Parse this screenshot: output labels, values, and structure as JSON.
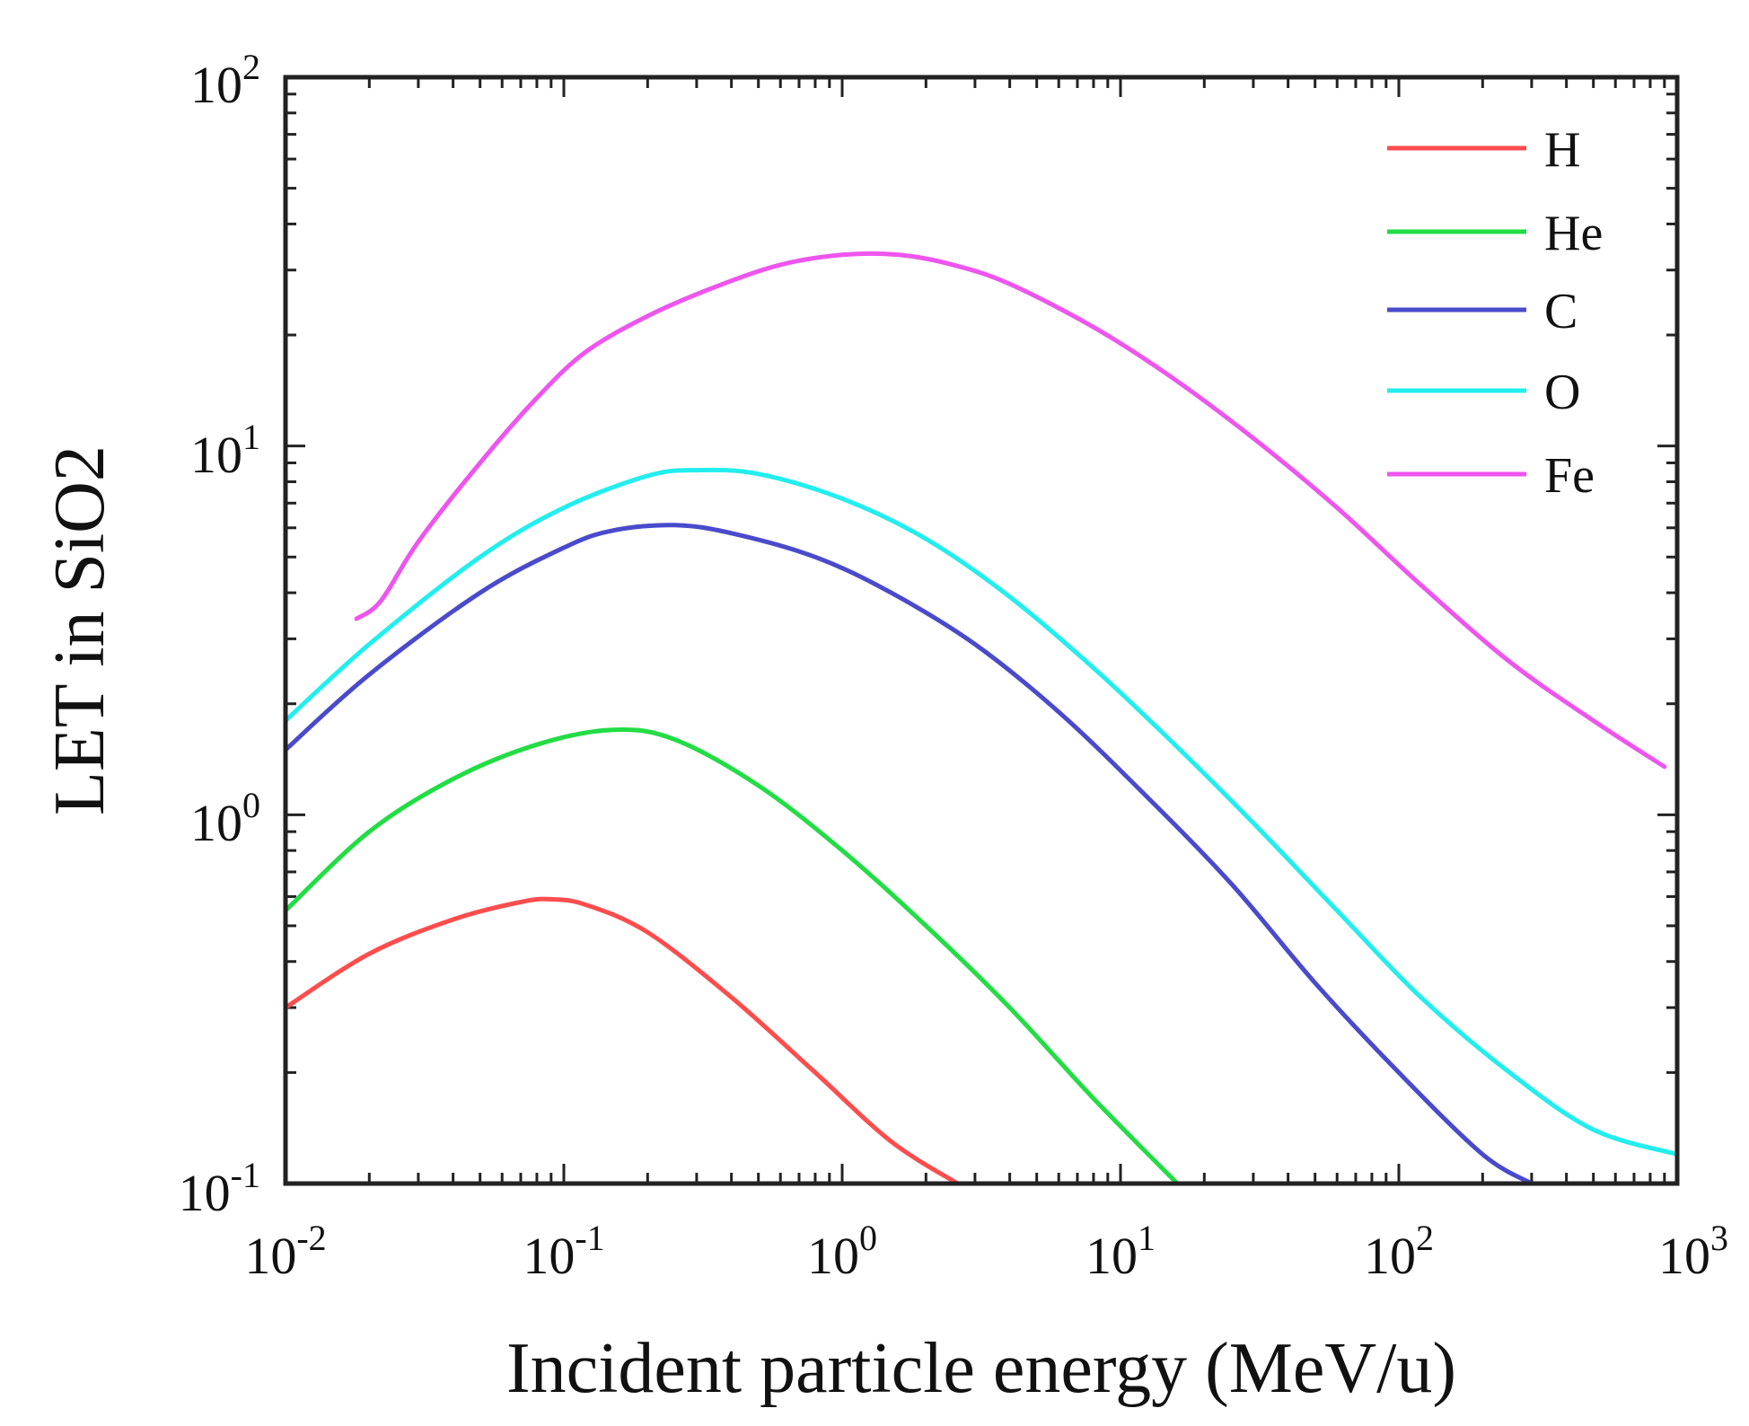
{
  "chart_data": {
    "type": "line",
    "xscale": "log",
    "yscale": "log",
    "xlim": [
      0.01,
      1000
    ],
    "ylim": [
      0.1,
      100
    ],
    "xlabel": "Incident particle energy (MeV/u)",
    "ylabel": "LET in SiO2",
    "legend_position": "top-right",
    "x_ticks": [
      {
        "base": "10",
        "exp": "-2"
      },
      {
        "base": "10",
        "exp": "-1"
      },
      {
        "base": "10",
        "exp": "0"
      },
      {
        "base": "10",
        "exp": "1"
      },
      {
        "base": "10",
        "exp": "2"
      },
      {
        "base": "10",
        "exp": "3"
      }
    ],
    "y_ticks": [
      {
        "base": "10",
        "exp": "-1"
      },
      {
        "base": "10",
        "exp": "0"
      },
      {
        "base": "10",
        "exp": "1"
      },
      {
        "base": "10",
        "exp": "2"
      }
    ],
    "series": [
      {
        "name": "H",
        "color": "#ff4d4d",
        "x": [
          0.01,
          0.02,
          0.04,
          0.07,
          0.09,
          0.12,
          0.2,
          0.4,
          0.8,
          1.5,
          2.6
        ],
        "y": [
          0.3,
          0.42,
          0.52,
          0.58,
          0.59,
          0.57,
          0.48,
          0.32,
          0.2,
          0.13,
          0.1
        ]
      },
      {
        "name": "He",
        "color": "#22dd44",
        "x": [
          0.01,
          0.02,
          0.04,
          0.08,
          0.15,
          0.25,
          0.5,
          1,
          2,
          4,
          8,
          16
        ],
        "y": [
          0.55,
          0.9,
          1.25,
          1.55,
          1.7,
          1.6,
          1.2,
          0.8,
          0.5,
          0.3,
          0.17,
          0.1
        ]
      },
      {
        "name": "C",
        "color": "#4a4acc",
        "x": [
          0.01,
          0.02,
          0.05,
          0.1,
          0.15,
          0.25,
          0.4,
          0.8,
          1.5,
          3,
          6,
          12,
          25,
          50,
          100,
          200,
          300
        ],
        "y": [
          1.5,
          2.4,
          4.0,
          5.3,
          5.9,
          6.1,
          5.8,
          5.0,
          4.0,
          2.9,
          1.9,
          1.15,
          0.65,
          0.35,
          0.2,
          0.12,
          0.1
        ]
      },
      {
        "name": "O",
        "color": "#22eeee",
        "x": [
          0.01,
          0.02,
          0.05,
          0.1,
          0.2,
          0.3,
          0.5,
          1,
          2,
          4,
          8,
          15,
          30,
          60,
          120,
          250,
          500,
          1000
        ],
        "y": [
          1.8,
          2.9,
          5.0,
          6.8,
          8.3,
          8.6,
          8.4,
          7.2,
          5.6,
          3.9,
          2.5,
          1.6,
          0.95,
          0.55,
          0.32,
          0.2,
          0.14,
          0.12
        ]
      },
      {
        "name": "Fe",
        "color": "#ee55ee",
        "x": [
          0.018,
          0.022,
          0.03,
          0.05,
          0.08,
          0.12,
          0.2,
          0.35,
          0.6,
          1,
          1.6,
          2.5,
          4,
          8,
          15,
          30,
          60,
          120,
          250,
          500,
          900
        ],
        "y": [
          3.4,
          3.8,
          5.5,
          9.0,
          13.5,
          18.0,
          22.5,
          27.0,
          31.0,
          33.0,
          33.0,
          31.0,
          27.5,
          21.0,
          15.5,
          10.5,
          6.8,
          4.2,
          2.6,
          1.8,
          1.35
        ]
      }
    ]
  }
}
